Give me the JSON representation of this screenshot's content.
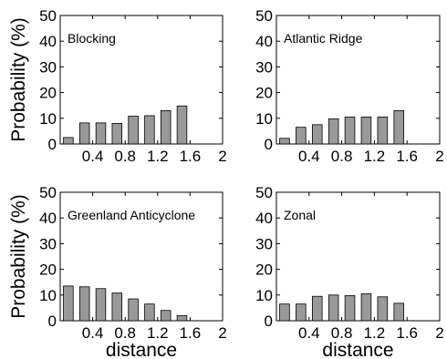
{
  "colors": {
    "bar_fill": "#999999",
    "bar_stroke": "#000000",
    "axis": "#000000",
    "background": "#ffffff"
  },
  "chart_data": [
    {
      "type": "bar",
      "title": "Blocking",
      "xlabel": "",
      "ylabel": "Probability (%)",
      "xlim": [
        0,
        2
      ],
      "ylim": [
        0,
        50
      ],
      "xticks": [
        "0.4",
        "0.8",
        "1.2",
        "1.6",
        "2"
      ],
      "yticks": [
        "0",
        "10",
        "20",
        "30",
        "40",
        "50"
      ],
      "x": [
        0.1,
        0.3,
        0.5,
        0.7,
        0.9,
        1.1,
        1.3,
        1.5,
        1.7,
        1.9
      ],
      "values": [
        2.5,
        8.2,
        8.2,
        8.0,
        10.8,
        11.0,
        13.0,
        14.8,
        0,
        0
      ]
    },
    {
      "type": "bar",
      "title": "Atlantic Ridge",
      "xlabel": "",
      "ylabel": "",
      "xlim": [
        0,
        2
      ],
      "ylim": [
        0,
        50
      ],
      "xticks": [
        "0.4",
        "0.8",
        "1.2",
        "1.6",
        "2"
      ],
      "yticks": [
        "0",
        "10",
        "20",
        "30",
        "40",
        "50"
      ],
      "x": [
        0.1,
        0.3,
        0.5,
        0.7,
        0.9,
        1.1,
        1.3,
        1.5,
        1.7,
        1.9
      ],
      "values": [
        2.2,
        6.5,
        7.5,
        9.8,
        10.5,
        10.5,
        10.5,
        13.0,
        0,
        0
      ]
    },
    {
      "type": "bar",
      "title": "Greenland Anticyclone",
      "xlabel": "distance",
      "ylabel": "Probability (%)",
      "xlim": [
        0,
        2
      ],
      "ylim": [
        0,
        50
      ],
      "xticks": [
        "0.4",
        "0.8",
        "1.2",
        "1.6",
        "2"
      ],
      "yticks": [
        "0",
        "10",
        "20",
        "30",
        "40",
        "50"
      ],
      "x": [
        0.1,
        0.3,
        0.5,
        0.7,
        0.9,
        1.1,
        1.3,
        1.5,
        1.7,
        1.9
      ],
      "values": [
        13.5,
        13.2,
        12.5,
        10.8,
        8.5,
        6.5,
        4.0,
        2.0,
        0,
        0
      ]
    },
    {
      "type": "bar",
      "title": "Zonal",
      "xlabel": "distance",
      "ylabel": "",
      "xlim": [
        0,
        2
      ],
      "ylim": [
        0,
        50
      ],
      "xticks": [
        "0.4",
        "0.8",
        "1.2",
        "1.6",
        "2"
      ],
      "yticks": [
        "0",
        "10",
        "20",
        "30",
        "40",
        "50"
      ],
      "x": [
        0.1,
        0.3,
        0.5,
        0.7,
        0.9,
        1.1,
        1.3,
        1.5,
        1.7,
        1.9
      ],
      "values": [
        6.5,
        6.5,
        9.5,
        10.0,
        9.8,
        10.5,
        9.3,
        6.8,
        0,
        0
      ]
    }
  ]
}
